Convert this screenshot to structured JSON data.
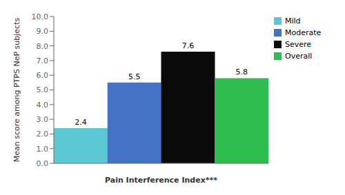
{
  "chart_data": {
    "type": "bar",
    "xlabel": "Pain Interference Index***",
    "ylabel": "Mean score among PTPS NeP subjects",
    "categories": [
      "Mild",
      "Moderate",
      "Severe",
      "Overall"
    ],
    "values": [
      2.4,
      5.5,
      7.6,
      5.8
    ],
    "colors": [
      "#5BC8D4",
      "#4472C4",
      "#0A0A0A",
      "#2EBD4E"
    ],
    "ylim": [
      0,
      10.0
    ],
    "yticks": [
      {
        "value": 0,
        "label": "0.0"
      },
      {
        "value": 1,
        "label": "1.0"
      },
      {
        "value": 2,
        "label": "2.0"
      },
      {
        "value": 3,
        "label": "3.0"
      },
      {
        "value": 4,
        "label": "4.0"
      },
      {
        "value": 5,
        "label": "5.0"
      },
      {
        "value": 6,
        "label": "6.0"
      },
      {
        "value": 7,
        "label": "7.0"
      },
      {
        "value": 8,
        "label": "8.0"
      },
      {
        "value": 9,
        "label": "9.0"
      },
      {
        "value": 10,
        "label": "10.0"
      }
    ],
    "data_labels": true,
    "tick_labels": "y",
    "legend": "right",
    "grid": false
  }
}
